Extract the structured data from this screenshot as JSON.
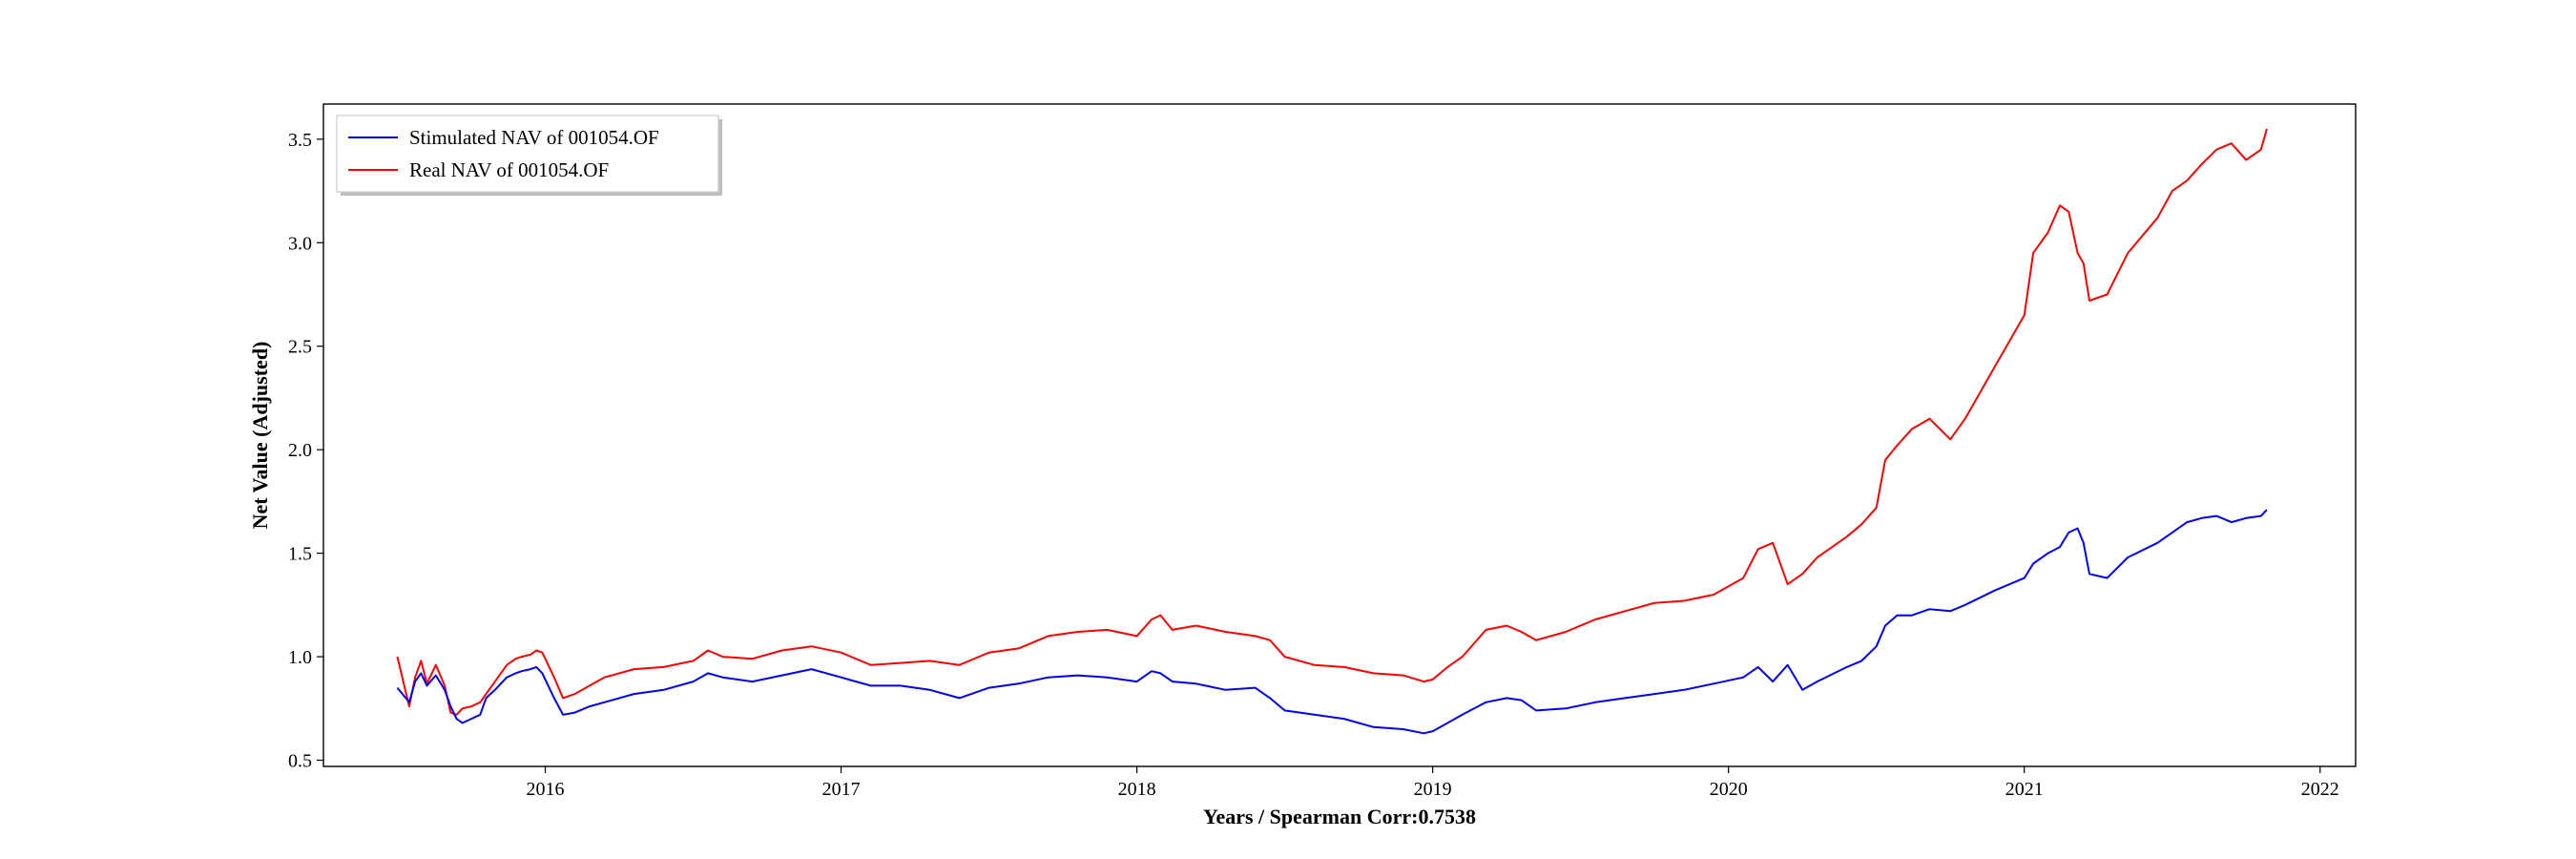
{
  "chart_data": {
    "type": "line",
    "xlabel": "Years / Spearman Corr:0.7538",
    "ylabel": "Net Value (Adjusted)",
    "xlim": [
      2015.25,
      2022.12
    ],
    "ylim": [
      0.47,
      3.67
    ],
    "x_ticks": [
      "2016",
      "2017",
      "2018",
      "2019",
      "2020",
      "2021",
      "2022"
    ],
    "y_ticks": [
      "0.5",
      "1.0",
      "1.5",
      "2.0",
      "2.5",
      "3.0",
      "3.5"
    ],
    "grid": false,
    "legend_position": "top-left",
    "series": [
      {
        "name": "Stimulated NAV of 001054.OF",
        "color": "#0000ff",
        "x": [
          2015.5,
          2015.54,
          2015.56,
          2015.58,
          2015.6,
          2015.63,
          2015.66,
          2015.68,
          2015.7,
          2015.72,
          2015.75,
          2015.78,
          2015.8,
          2015.83,
          2015.87,
          2015.9,
          2015.92,
          2015.95,
          2015.97,
          2015.99,
          2016.03,
          2016.06,
          2016.1,
          2016.15,
          2016.2,
          2016.3,
          2016.4,
          2016.5,
          2016.55,
          2016.6,
          2016.7,
          2016.8,
          2016.9,
          2017.0,
          2017.1,
          2017.2,
          2017.3,
          2017.4,
          2017.5,
          2017.6,
          2017.7,
          2017.8,
          2017.9,
          2018.0,
          2018.05,
          2018.08,
          2018.12,
          2018.2,
          2018.3,
          2018.4,
          2018.45,
          2018.5,
          2018.6,
          2018.7,
          2018.8,
          2018.9,
          2018.97,
          2019.0,
          2019.05,
          2019.1,
          2019.18,
          2019.25,
          2019.3,
          2019.35,
          2019.45,
          2019.55,
          2019.65,
          2019.75,
          2019.85,
          2019.95,
          2020.05,
          2020.1,
          2020.15,
          2020.2,
          2020.25,
          2020.3,
          2020.4,
          2020.45,
          2020.5,
          2020.53,
          2020.57,
          2020.62,
          2020.68,
          2020.75,
          2020.8,
          2020.9,
          2021.0,
          2021.03,
          2021.08,
          2021.12,
          2021.15,
          2021.18,
          2021.2,
          2021.22,
          2021.28,
          2021.35,
          2021.45,
          2021.5,
          2021.55,
          2021.6,
          2021.65,
          2021.7,
          2021.75,
          2021.8,
          2021.82
        ],
        "y": [
          0.85,
          0.78,
          0.88,
          0.92,
          0.86,
          0.91,
          0.84,
          0.76,
          0.7,
          0.68,
          0.7,
          0.72,
          0.8,
          0.84,
          0.9,
          0.92,
          0.93,
          0.94,
          0.95,
          0.92,
          0.8,
          0.72,
          0.73,
          0.76,
          0.78,
          0.82,
          0.84,
          0.88,
          0.92,
          0.9,
          0.88,
          0.91,
          0.94,
          0.9,
          0.86,
          0.86,
          0.84,
          0.8,
          0.85,
          0.87,
          0.9,
          0.91,
          0.9,
          0.88,
          0.93,
          0.92,
          0.88,
          0.87,
          0.84,
          0.85,
          0.8,
          0.74,
          0.72,
          0.7,
          0.66,
          0.65,
          0.63,
          0.64,
          0.68,
          0.72,
          0.78,
          0.8,
          0.79,
          0.74,
          0.75,
          0.78,
          0.8,
          0.82,
          0.84,
          0.87,
          0.9,
          0.95,
          0.88,
          0.96,
          0.84,
          0.88,
          0.95,
          0.98,
          1.05,
          1.15,
          1.2,
          1.2,
          1.23,
          1.22,
          1.25,
          1.32,
          1.38,
          1.45,
          1.5,
          1.53,
          1.6,
          1.62,
          1.55,
          1.4,
          1.38,
          1.48,
          1.55,
          1.6,
          1.65,
          1.67,
          1.68,
          1.65,
          1.67,
          1.68,
          1.71
        ]
      },
      {
        "name": "Real NAV of 001054.OF",
        "color": "#ff0000",
        "x": [
          2015.5,
          2015.54,
          2015.56,
          2015.58,
          2015.6,
          2015.63,
          2015.66,
          2015.68,
          2015.7,
          2015.72,
          2015.75,
          2015.78,
          2015.8,
          2015.83,
          2015.87,
          2015.9,
          2015.92,
          2015.95,
          2015.97,
          2015.99,
          2016.03,
          2016.06,
          2016.1,
          2016.15,
          2016.2,
          2016.3,
          2016.4,
          2016.5,
          2016.55,
          2016.6,
          2016.7,
          2016.8,
          2016.9,
          2017.0,
          2017.1,
          2017.2,
          2017.3,
          2017.4,
          2017.5,
          2017.6,
          2017.7,
          2017.8,
          2017.9,
          2018.0,
          2018.05,
          2018.08,
          2018.12,
          2018.2,
          2018.3,
          2018.4,
          2018.45,
          2018.5,
          2018.6,
          2018.7,
          2018.8,
          2018.9,
          2018.97,
          2019.0,
          2019.05,
          2019.1,
          2019.18,
          2019.25,
          2019.3,
          2019.35,
          2019.45,
          2019.55,
          2019.65,
          2019.75,
          2019.85,
          2019.95,
          2020.05,
          2020.1,
          2020.15,
          2020.2,
          2020.25,
          2020.3,
          2020.4,
          2020.45,
          2020.5,
          2020.53,
          2020.57,
          2020.62,
          2020.68,
          2020.75,
          2020.8,
          2020.9,
          2021.0,
          2021.03,
          2021.08,
          2021.12,
          2021.15,
          2021.18,
          2021.2,
          2021.22,
          2021.28,
          2021.35,
          2021.45,
          2021.5,
          2021.55,
          2021.6,
          2021.65,
          2021.7,
          2021.75,
          2021.8,
          2021.82
        ],
        "y": [
          1.0,
          0.76,
          0.9,
          0.98,
          0.87,
          0.96,
          0.86,
          0.73,
          0.72,
          0.75,
          0.76,
          0.78,
          0.82,
          0.88,
          0.96,
          0.99,
          1.0,
          1.01,
          1.03,
          1.02,
          0.9,
          0.8,
          0.82,
          0.86,
          0.9,
          0.94,
          0.95,
          0.98,
          1.03,
          1.0,
          0.99,
          1.03,
          1.05,
          1.02,
          0.96,
          0.97,
          0.98,
          0.96,
          1.02,
          1.04,
          1.1,
          1.12,
          1.13,
          1.1,
          1.18,
          1.2,
          1.13,
          1.15,
          1.12,
          1.1,
          1.08,
          1.0,
          0.96,
          0.95,
          0.92,
          0.91,
          0.88,
          0.89,
          0.95,
          1.0,
          1.13,
          1.15,
          1.12,
          1.08,
          1.12,
          1.18,
          1.22,
          1.26,
          1.27,
          1.3,
          1.38,
          1.52,
          1.55,
          1.35,
          1.4,
          1.48,
          1.58,
          1.64,
          1.72,
          1.95,
          2.02,
          2.1,
          2.15,
          2.05,
          2.15,
          2.4,
          2.65,
          2.95,
          3.05,
          3.18,
          3.15,
          2.95,
          2.9,
          2.72,
          2.75,
          2.95,
          3.12,
          3.25,
          3.3,
          3.38,
          3.45,
          3.48,
          3.4,
          3.45,
          3.55
        ]
      }
    ]
  }
}
